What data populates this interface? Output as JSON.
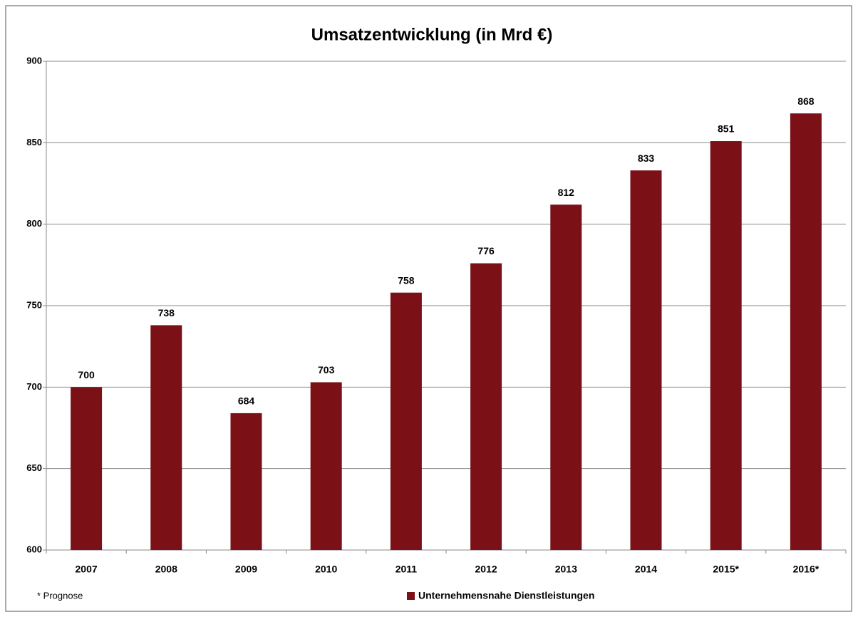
{
  "chart_data": {
    "type": "bar",
    "title": "Umsatzentwicklung (in Mrd €)",
    "categories": [
      "2007",
      "2008",
      "2009",
      "2010",
      "2011",
      "2012",
      "2013",
      "2014",
      "2015*",
      "2016*"
    ],
    "series": [
      {
        "name": "Unternehmensnahe Dienstleistungen",
        "color": "#7b1116",
        "values": [
          700,
          738,
          684,
          703,
          758,
          776,
          812,
          833,
          851,
          868
        ]
      }
    ],
    "ylim": [
      600,
      900
    ],
    "yticks": [
      600,
      650,
      700,
      750,
      800,
      850,
      900
    ],
    "grid": true,
    "note": "* Prognose",
    "legend": "bottom"
  }
}
